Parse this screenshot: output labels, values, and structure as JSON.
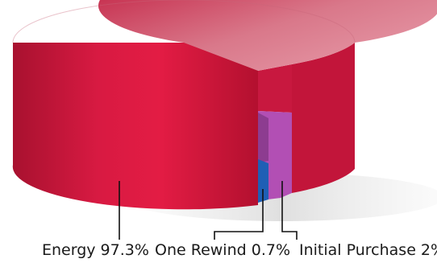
{
  "chart_data": {
    "type": "pie",
    "style": "3d-cylinder",
    "title": "",
    "slices": [
      {
        "label": "Energy",
        "value": 97.3,
        "label_text": "Energy 97.3%",
        "color": "#d8173f"
      },
      {
        "label": "One Rewind",
        "value": 0.7,
        "label_text": "One Rewind 0.7%",
        "color": "#1f5fb5"
      },
      {
        "label": "Initial Purchase",
        "value": 2,
        "label_text": "Initial Purchase 2%",
        "color": "#b24fb4"
      }
    ],
    "legend": "none"
  }
}
